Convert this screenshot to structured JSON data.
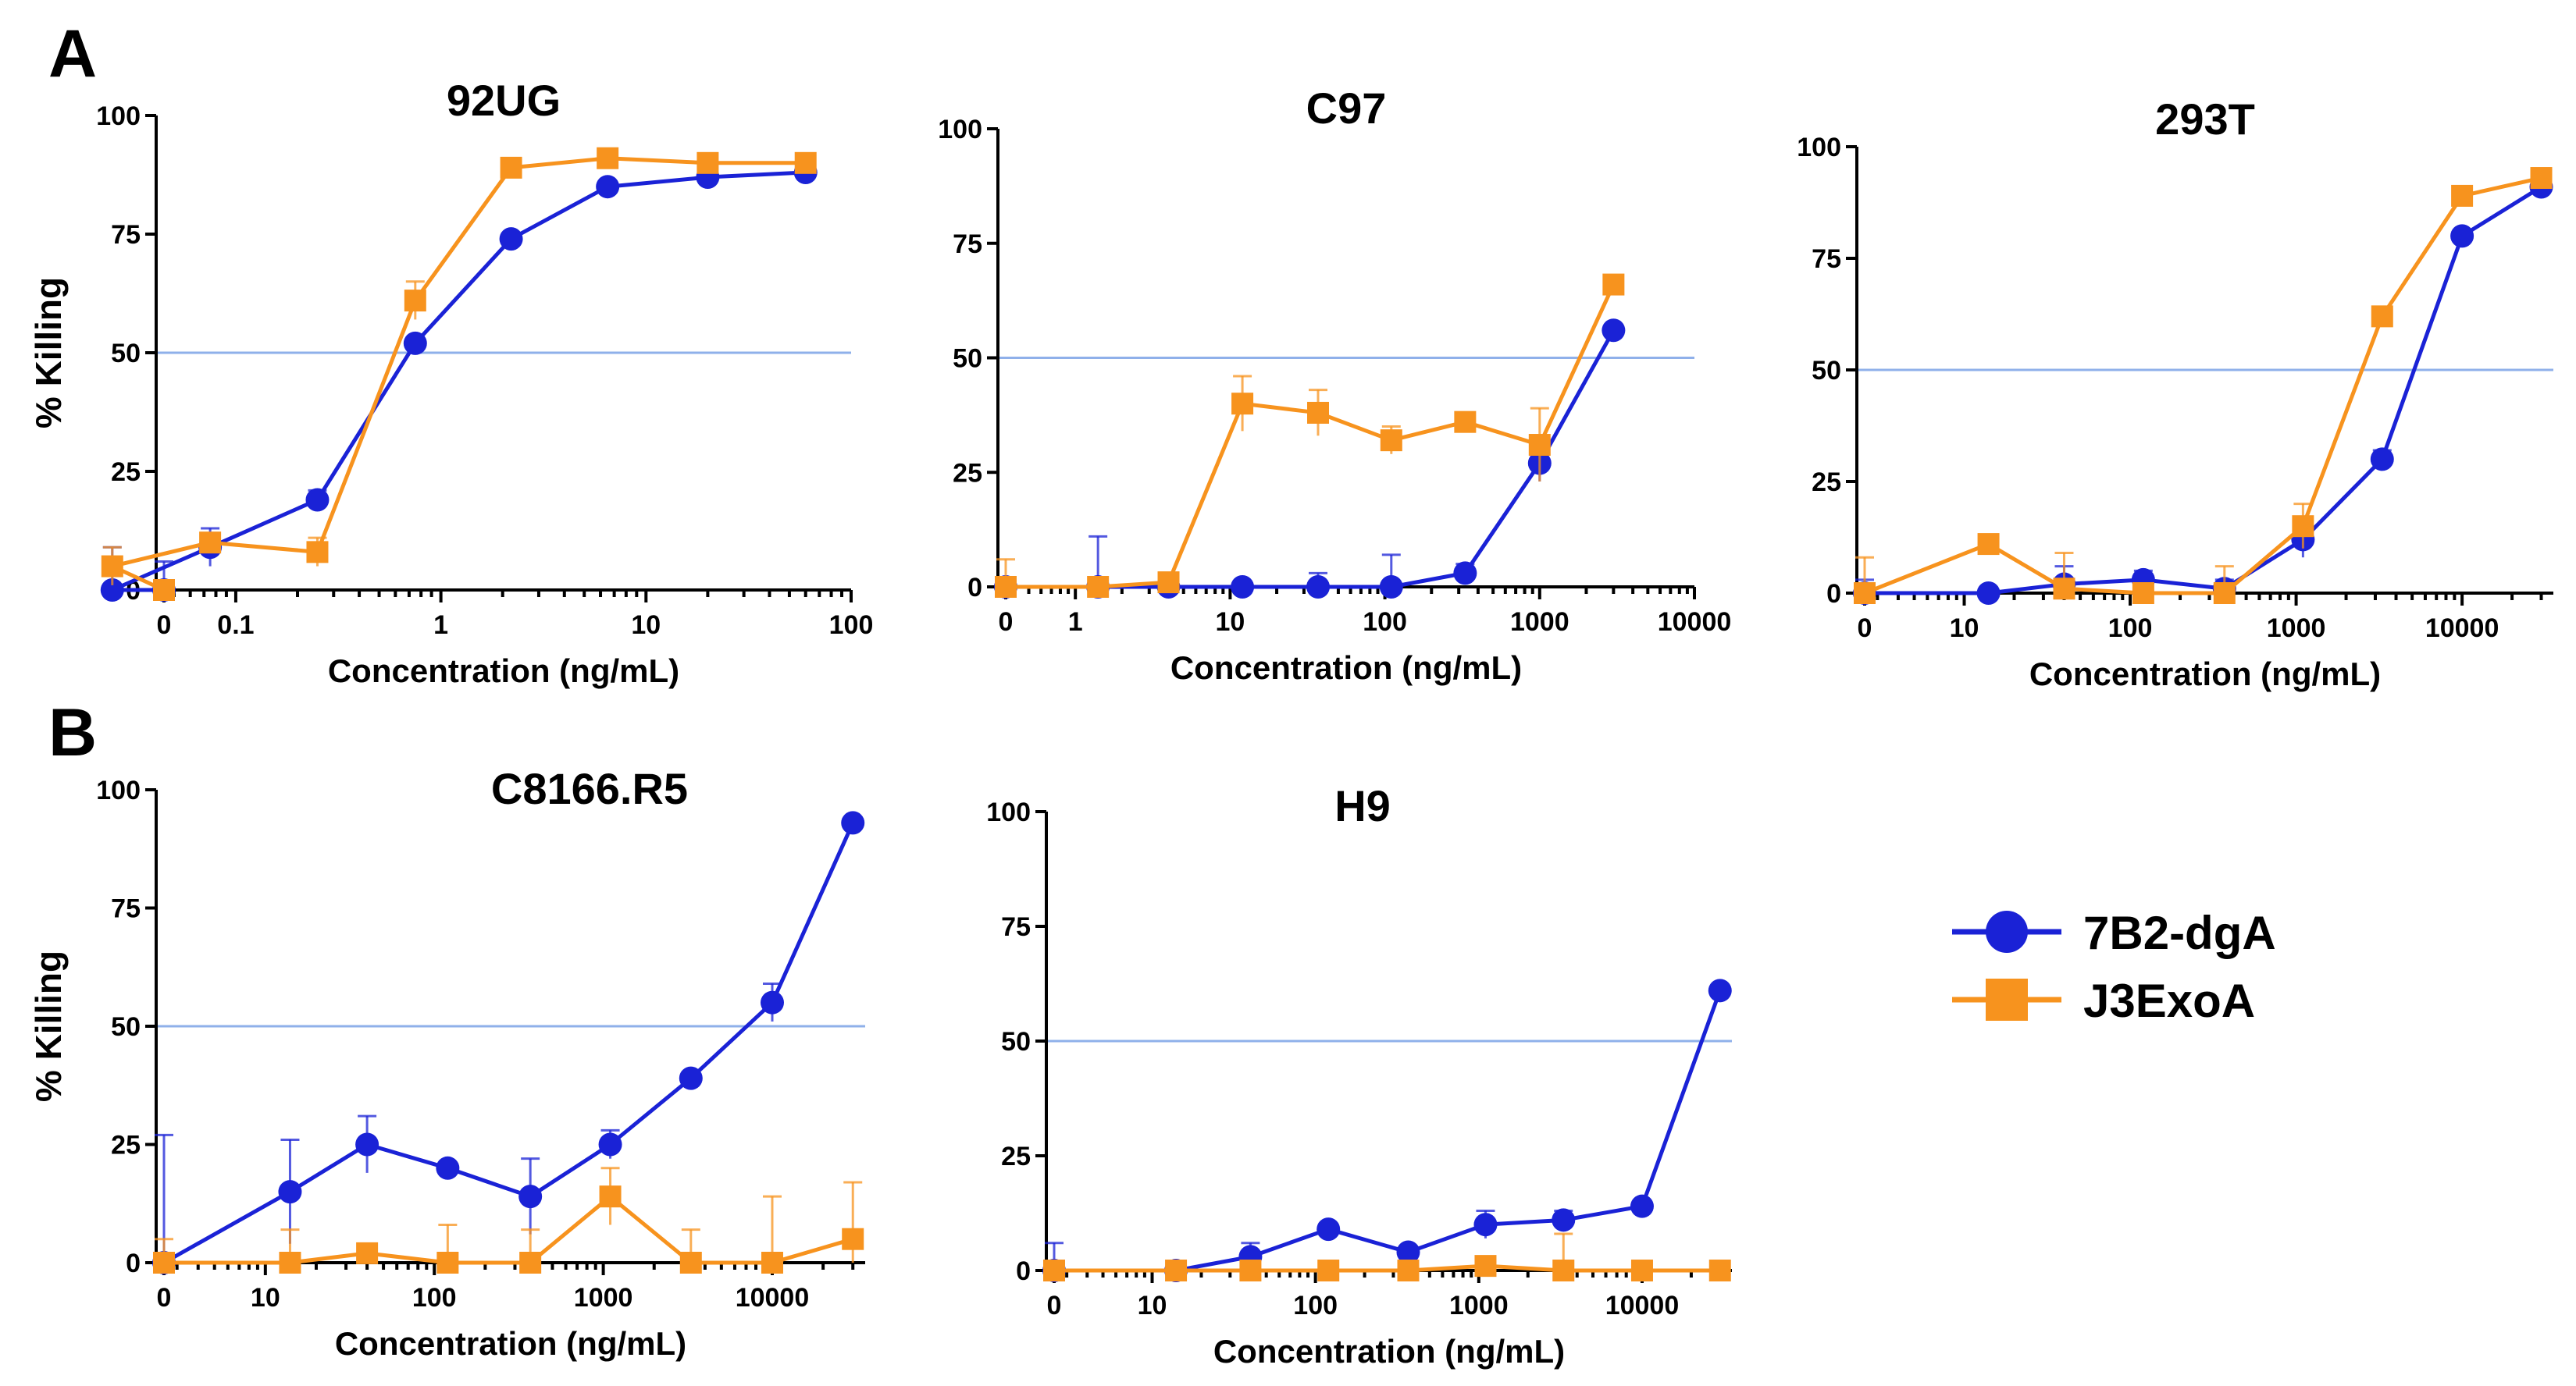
{
  "panel_labels": [
    "A",
    "B"
  ],
  "legend": [
    {
      "name": "7B2-dgA",
      "color": "#1a22d6",
      "marker": "circle"
    },
    {
      "name": "J3ExoA",
      "color": "#f7931e",
      "marker": "square"
    }
  ],
  "chart_data": [
    {
      "type": "line",
      "title": "92UG",
      "xlabel": "Concentration (ng/mL)",
      "ylabel": "% Killing",
      "xscale": "log",
      "xlim_decades": [
        -1.35,
        2.0
      ],
      "ylim": [
        0,
        100
      ],
      "yticks": [
        0,
        25,
        50,
        75,
        100
      ],
      "xticks": [
        {
          "v": "zero",
          "label": "0"
        },
        {
          "v": 0.1,
          "label": "0.1"
        },
        {
          "v": 1,
          "label": "1"
        },
        {
          "v": 10,
          "label": "10"
        },
        {
          "v": 100,
          "label": "100"
        }
      ],
      "reference_line": 50,
      "series": [
        {
          "name": "7B2-dgA",
          "x": [
            "zero",
            0.025,
            0.075,
            0.25,
            0.75,
            2.2,
            6.5,
            20,
            60
          ],
          "values": [
            0,
            0,
            9,
            19,
            52,
            74,
            85,
            87,
            88
          ],
          "err": [
            6,
            9,
            4,
            2,
            1,
            1,
            1,
            1,
            1
          ]
        },
        {
          "name": "J3ExoA",
          "x": [
            "zero",
            0.025,
            0.075,
            0.25,
            0.75,
            2.2,
            6.5,
            20,
            60
          ],
          "values": [
            0,
            5,
            10,
            8,
            61,
            89,
            91,
            90,
            90
          ],
          "err": [
            1,
            4,
            1,
            3,
            4,
            1,
            1,
            1,
            1
          ]
        }
      ]
    },
    {
      "type": "line",
      "title": "C97",
      "xlabel": "Concentration (ng/mL)",
      "ylabel": "",
      "xscale": "log",
      "xlim_decades": [
        -0.45,
        4.0
      ],
      "ylim": [
        0,
        100
      ],
      "yticks": [
        0,
        25,
        50,
        75,
        100
      ],
      "xticks": [
        {
          "v": "zero",
          "label": "0"
        },
        {
          "v": 1,
          "label": "1"
        },
        {
          "v": 10,
          "label": "10"
        },
        {
          "v": 100,
          "label": "100"
        },
        {
          "v": 1000,
          "label": "1000"
        },
        {
          "v": 10000,
          "label": "10000"
        }
      ],
      "reference_line": 50,
      "series": [
        {
          "name": "7B2-dgA",
          "x": [
            "zero",
            1.4,
            4,
            12,
            37,
            110,
            330,
            1000,
            3000
          ],
          "values": [
            0,
            0,
            0,
            0,
            0,
            0,
            3,
            27,
            56
          ],
          "err": [
            1,
            11,
            2,
            1,
            3,
            7,
            2,
            4,
            1
          ]
        },
        {
          "name": "J3ExoA",
          "x": [
            "zero",
            1.4,
            4,
            12,
            37,
            110,
            330,
            1000,
            3000
          ],
          "values": [
            0,
            0,
            1,
            40,
            38,
            32,
            36,
            31,
            66
          ],
          "err": [
            6,
            1,
            2,
            6,
            5,
            3,
            2,
            8,
            1
          ]
        }
      ]
    },
    {
      "type": "line",
      "title": "293T",
      "xlabel": "Concentration (ng/mL)",
      "ylabel": "",
      "xscale": "log",
      "xlim_decades": [
        0.4,
        4.55
      ],
      "ylim": [
        0,
        100
      ],
      "yticks": [
        0,
        25,
        50,
        75,
        100
      ],
      "xticks": [
        {
          "v": "zero",
          "label": "0"
        },
        {
          "v": 10,
          "label": "10"
        },
        {
          "v": 100,
          "label": "100"
        },
        {
          "v": 1000,
          "label": "1000"
        },
        {
          "v": 10000,
          "label": "10000"
        }
      ],
      "reference_line": 50,
      "series": [
        {
          "name": "7B2-dgA",
          "x": [
            "zero",
            14,
            40,
            120,
            370,
            1100,
            3300,
            10000,
            30000
          ],
          "values": [
            0,
            0,
            2,
            3,
            1,
            12,
            30,
            80,
            91
          ],
          "err": [
            3,
            1,
            4,
            2,
            2,
            4,
            2,
            1,
            1
          ]
        },
        {
          "name": "J3ExoA",
          "x": [
            "zero",
            14,
            40,
            120,
            370,
            1100,
            3300,
            10000,
            30000
          ],
          "values": [
            0,
            11,
            1,
            0,
            0,
            15,
            62,
            89,
            93
          ],
          "err": [
            8,
            2,
            8,
            2,
            6,
            5,
            2,
            2,
            2
          ]
        }
      ]
    },
    {
      "type": "line",
      "title": "C8166.R5",
      "xlabel": "Concentration (ng/mL)",
      "ylabel": "% Killing",
      "xscale": "log",
      "xlim_decades": [
        0.4,
        4.55
      ],
      "ylim": [
        0,
        100
      ],
      "yticks": [
        0,
        25,
        50,
        75,
        100
      ],
      "xticks": [
        {
          "v": "zero",
          "label": "0"
        },
        {
          "v": 10,
          "label": "10"
        },
        {
          "v": 100,
          "label": "100"
        },
        {
          "v": 1000,
          "label": "1000"
        },
        {
          "v": 10000,
          "label": "10000"
        }
      ],
      "reference_line": 50,
      "series": [
        {
          "name": "7B2-dgA",
          "x": [
            "zero",
            14,
            40,
            120,
            370,
            1100,
            3300,
            10000,
            30000
          ],
          "values": [
            0,
            15,
            25,
            20,
            14,
            25,
            39,
            55,
            93
          ],
          "err": [
            27,
            11,
            6,
            1,
            8,
            3,
            1,
            4,
            1
          ]
        },
        {
          "name": "J3ExoA",
          "x": [
            "zero",
            14,
            40,
            120,
            370,
            1100,
            3300,
            10000,
            30000
          ],
          "values": [
            0,
            0,
            2,
            0,
            0,
            14,
            0,
            0,
            5
          ],
          "err": [
            5,
            7,
            1,
            8,
            7,
            6,
            7,
            14,
            12
          ]
        }
      ]
    },
    {
      "type": "line",
      "title": "H9",
      "xlabel": "Concentration (ng/mL)",
      "ylabel": "",
      "xscale": "log",
      "xlim_decades": [
        0.4,
        4.55
      ],
      "ylim": [
        0,
        100
      ],
      "yticks": [
        0,
        25,
        50,
        75,
        100
      ],
      "xticks": [
        {
          "v": "zero",
          "label": "0"
        },
        {
          "v": 10,
          "label": "10"
        },
        {
          "v": 100,
          "label": "100"
        },
        {
          "v": 1000,
          "label": "1000"
        },
        {
          "v": 10000,
          "label": "10000"
        }
      ],
      "reference_line": 50,
      "series": [
        {
          "name": "7B2-dgA",
          "x": [
            "zero",
            14,
            40,
            120,
            370,
            1100,
            3300,
            10000,
            30000
          ],
          "values": [
            0,
            0,
            3,
            9,
            4,
            10,
            11,
            14,
            61
          ],
          "err": [
            6,
            1,
            3,
            1,
            1,
            3,
            2,
            1,
            1
          ]
        },
        {
          "name": "J3ExoA",
          "x": [
            "zero",
            14,
            40,
            120,
            370,
            1100,
            3300,
            10000,
            30000
          ],
          "values": [
            0,
            0,
            0,
            0,
            0,
            1,
            0,
            0,
            0
          ],
          "err": [
            1,
            1,
            1,
            1,
            1,
            1,
            8,
            1,
            1
          ]
        }
      ]
    }
  ]
}
